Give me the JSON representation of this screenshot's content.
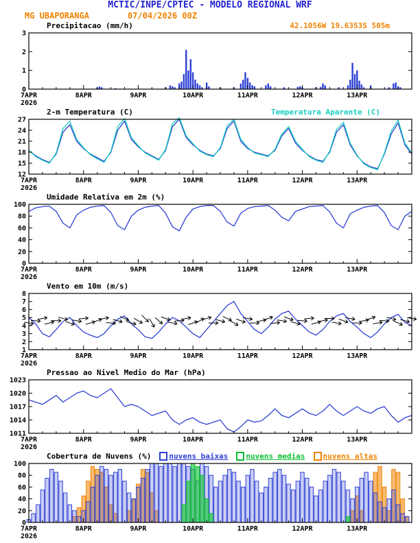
{
  "header": {
    "line1": "MCTIC/INPE/CPTEC - MODELO REGIONAL WRF",
    "station": "MG UBAPORANGA",
    "run": "07/04/2026 00Z",
    "location": "42.1056W 19.6353S 505m"
  },
  "colors": {
    "header_blue": "#2323cf",
    "orange": "#ef8300",
    "line_blue": "#2d3fd4",
    "cyan": "#17cfc0",
    "green": "#0abf30",
    "black": "#000000"
  },
  "x_axis": {
    "hours": 168,
    "day_labels": [
      "7APR",
      "8APR",
      "9APR",
      "10APR",
      "11APR",
      "12APR",
      "13APR"
    ],
    "year": "2026"
  },
  "chart_data": [
    {
      "id": "precipitation",
      "type": "bar",
      "title": "Precipitacao (mm/h)",
      "ylim": [
        0,
        3
      ],
      "yticks": [
        0,
        1,
        2,
        3
      ],
      "height": 82,
      "series": [
        {
          "name": "precipitacao",
          "color": "#2d3fd4",
          "type": "bar",
          "solid": true,
          "bar_width": 2.4,
          "step_hours": 1,
          "values": [
            0,
            0,
            0,
            0,
            0,
            0,
            0,
            0,
            0,
            0,
            0,
            0,
            0,
            0,
            0,
            0,
            0,
            0,
            0,
            0,
            0,
            0,
            0,
            0,
            0,
            0,
            0,
            0,
            0,
            0,
            0.1,
            0.15,
            0.1,
            0,
            0,
            0,
            0,
            0,
            0.05,
            0,
            0,
            0,
            0,
            0,
            0,
            0,
            0,
            0,
            0,
            0,
            0,
            0,
            0,
            0,
            0,
            0,
            0,
            0,
            0,
            0,
            0.1,
            0,
            0.2,
            0.15,
            0.1,
            0,
            0.3,
            0.4,
            0.8,
            2.1,
            1.0,
            1.6,
            0.9,
            0.5,
            0.3,
            0.2,
            0.1,
            0,
            0.35,
            0.15,
            0,
            0,
            0,
            0,
            0.1,
            0,
            0,
            0,
            0,
            0,
            0.1,
            0,
            0,
            0.3,
            0.5,
            0.9,
            0.6,
            0.35,
            0.2,
            0.15,
            0,
            0,
            0,
            0,
            0.2,
            0.3,
            0.15,
            0,
            0,
            0,
            0,
            0,
            0.1,
            0,
            0,
            0,
            0,
            0,
            0.12,
            0.15,
            0.1,
            0,
            0,
            0,
            0,
            0,
            0.1,
            0,
            0.12,
            0.3,
            0.2,
            0,
            0,
            0,
            0,
            0,
            0.1,
            0,
            0,
            0,
            0.2,
            0.5,
            1.4,
            0.8,
            1.0,
            0.45,
            0.25,
            0.1,
            0,
            0,
            0.2,
            0,
            0,
            0,
            0,
            0,
            0,
            0,
            0.1,
            0,
            0.3,
            0.35,
            0.15,
            0.1,
            0,
            0,
            0,
            0
          ]
        }
      ]
    },
    {
      "id": "temperature",
      "type": "line",
      "title": "2-m Temperatura (C)",
      "ylim": [
        12,
        27
      ],
      "yticks": [
        12,
        15,
        18,
        21,
        24,
        27
      ],
      "height": 80,
      "series": [
        {
          "name": "2-m Temperatura (C)",
          "color": "#2d3fd4",
          "type": "line",
          "step_hours": 3,
          "values": [
            18.5,
            17.0,
            16.0,
            15.2,
            17.5,
            23.5,
            25.5,
            21.0,
            19.0,
            17.5,
            16.5,
            15.5,
            18.0,
            24.0,
            26.5,
            21.5,
            19.5,
            18.0,
            17.0,
            16.0,
            18.5,
            25.0,
            27.0,
            22.0,
            20.0,
            18.5,
            17.5,
            17.0,
            19.0,
            24.5,
            26.5,
            21.0,
            19.0,
            18.0,
            17.5,
            17.0,
            18.5,
            22.5,
            24.5,
            20.5,
            18.5,
            17.0,
            16.0,
            15.5,
            18.0,
            23.5,
            25.5,
            20.0,
            17.0,
            15.0,
            14.0,
            13.5,
            17.5,
            23.0,
            26.0,
            20.0,
            17.5
          ]
        },
        {
          "name": "Temperatura Aparente (C)",
          "color": "#17cfc0",
          "type": "line",
          "step_hours": 3,
          "values": [
            18.5,
            16.8,
            15.8,
            15.0,
            17.8,
            24.5,
            26.5,
            21.5,
            19.2,
            17.3,
            16.2,
            15.2,
            18.3,
            25.0,
            27.2,
            22.0,
            19.8,
            17.8,
            16.8,
            15.8,
            18.8,
            25.8,
            27.5,
            22.5,
            20.3,
            18.3,
            17.3,
            16.8,
            19.3,
            25.2,
            27.0,
            21.5,
            19.3,
            17.8,
            17.3,
            16.8,
            18.8,
            23.0,
            25.0,
            21.0,
            18.8,
            16.8,
            15.8,
            15.2,
            18.3,
            24.2,
            26.2,
            20.5,
            17.2,
            14.8,
            13.8,
            13.2,
            17.8,
            23.8,
            26.8,
            20.5,
            17.8
          ]
        }
      ]
    },
    {
      "id": "humidity",
      "type": "line",
      "title": "Umidade Relativa em 2m (%)",
      "ylim": [
        0,
        100
      ],
      "yticks": [
        0,
        20,
        40,
        60,
        80,
        100
      ],
      "height": 86,
      "series": [
        {
          "name": "umidade relativa",
          "color": "#2d3fd4",
          "type": "line",
          "step_hours": 3,
          "values": [
            88,
            94,
            96,
            97,
            88,
            68,
            60,
            82,
            90,
            95,
            97,
            98,
            86,
            64,
            57,
            80,
            90,
            95,
            97,
            98,
            85,
            62,
            55,
            78,
            92,
            96,
            98,
            98,
            88,
            70,
            63,
            85,
            93,
            96,
            97,
            98,
            90,
            78,
            72,
            88,
            92,
            96,
            97,
            98,
            87,
            68,
            60,
            84,
            90,
            95,
            97,
            98,
            86,
            64,
            57,
            80,
            88
          ]
        }
      ]
    },
    {
      "id": "wind",
      "type": "line",
      "title": "Vento em 10m (m/s)",
      "ylim": [
        1,
        8
      ],
      "yticks": [
        1,
        2,
        3,
        4,
        5,
        6,
        7,
        8
      ],
      "height": 82,
      "series": [
        {
          "name": "velocidade do vento",
          "color": "#2d3fd4",
          "type": "line",
          "step_hours": 3,
          "values": [
            5.0,
            4.2,
            3.0,
            2.6,
            3.5,
            4.5,
            5.0,
            4.0,
            3.2,
            2.8,
            2.5,
            3.0,
            4.0,
            4.8,
            5.2,
            4.2,
            3.5,
            2.6,
            2.4,
            3.2,
            4.2,
            5.0,
            4.6,
            3.8,
            3.0,
            2.5,
            3.5,
            4.5,
            5.5,
            6.5,
            7.0,
            5.5,
            4.5,
            3.5,
            3.0,
            3.8,
            4.8,
            5.5,
            5.8,
            4.8,
            4.0,
            3.2,
            2.8,
            3.5,
            4.5,
            5.2,
            5.5,
            4.5,
            3.8,
            3.0,
            2.5,
            3.2,
            4.2,
            5.0,
            5.4,
            4.4,
            4.0
          ]
        }
      ],
      "barbs": {
        "step_hours": 3,
        "y_level": 4.6,
        "angles": [
          10,
          5,
          -10,
          -15,
          0,
          15,
          20,
          10,
          -5,
          -15,
          -20,
          -10,
          5,
          15,
          25,
          15,
          30,
          45,
          60,
          40,
          20,
          10,
          -5,
          -10,
          -20,
          -30,
          -15,
          0,
          15,
          25,
          30,
          20,
          10,
          0,
          -10,
          -20,
          -5,
          10,
          20,
          15,
          5,
          -5,
          -15,
          -10,
          0,
          10,
          20,
          10,
          0,
          -10,
          -20,
          -10,
          5,
          15,
          25,
          15,
          10
        ]
      }
    },
    {
      "id": "pressure",
      "type": "line",
      "title": "Pressao ao Nivel Medio do Mar (hPa)",
      "ylim": [
        1011,
        1023
      ],
      "yticks": [
        1011,
        1014,
        1017,
        1020,
        1023
      ],
      "height": 78,
      "series": [
        {
          "name": "pressao ao nivel medio do mar",
          "color": "#2d3fd4",
          "type": "line",
          "step_hours": 3,
          "values": [
            1018.5,
            1018.0,
            1017.5,
            1018.5,
            1019.5,
            1018.0,
            1019.0,
            1020.0,
            1020.5,
            1019.5,
            1019.0,
            1020.0,
            1021.0,
            1019.0,
            1017.0,
            1017.5,
            1017.0,
            1016.0,
            1015.0,
            1015.5,
            1016.0,
            1014.0,
            1013.0,
            1014.0,
            1014.5,
            1013.5,
            1013.0,
            1013.5,
            1014.0,
            1012.0,
            1011.3,
            1012.5,
            1014.0,
            1013.5,
            1013.8,
            1015.0,
            1016.5,
            1015.0,
            1014.5,
            1015.5,
            1016.5,
            1015.5,
            1015.0,
            1016.0,
            1017.5,
            1016.0,
            1015.0,
            1016.0,
            1017.0,
            1016.0,
            1015.5,
            1016.5,
            1017.0,
            1015.0,
            1013.5,
            1014.5,
            1015.0
          ]
        }
      ]
    },
    {
      "id": "clouds",
      "type": "bar",
      "title": "Cobertura de Nuvens (%)",
      "ylim": [
        0,
        100
      ],
      "yticks": [
        0,
        20,
        40,
        60,
        80,
        100
      ],
      "height": 86,
      "draw_order": [
        2,
        0,
        1
      ],
      "series": [
        {
          "name": "nuvens baixas",
          "label": "nuvens baixas",
          "color": "#2d3fd4",
          "type": "bar",
          "fill_opacity": 0.25,
          "step_hours": 2,
          "values": [
            5,
            15,
            30,
            55,
            75,
            90,
            85,
            70,
            50,
            30,
            20,
            10,
            20,
            35,
            60,
            80,
            95,
            90,
            80,
            85,
            90,
            70,
            50,
            40,
            60,
            75,
            90,
            100,
            100,
            95,
            100,
            100,
            95,
            100,
            100,
            95,
            90,
            70,
            100,
            95,
            80,
            60,
            70,
            80,
            90,
            85,
            70,
            60,
            80,
            90,
            70,
            50,
            60,
            75,
            85,
            90,
            80,
            65,
            55,
            70,
            85,
            75,
            60,
            45,
            55,
            70,
            80,
            90,
            85,
            70,
            55,
            40,
            60,
            75,
            85,
            70,
            50,
            35,
            25,
            40,
            55,
            30,
            15,
            10
          ]
        },
        {
          "name": "nuvens medias",
          "label": "nuvens medias",
          "color": "#0abf30",
          "type": "bar",
          "fill_opacity": 0.6,
          "step_hours": 2,
          "values": [
            0,
            0,
            0,
            0,
            0,
            0,
            0,
            0,
            0,
            0,
            0,
            0,
            0,
            0,
            0,
            0,
            0,
            0,
            0,
            0,
            0,
            0,
            0,
            0,
            0,
            0,
            0,
            0,
            0,
            0,
            0,
            0,
            0,
            0,
            30,
            70,
            100,
            95,
            80,
            40,
            15,
            0,
            0,
            0,
            0,
            0,
            0,
            0,
            0,
            0,
            0,
            0,
            0,
            0,
            0,
            0,
            0,
            0,
            0,
            0,
            0,
            0,
            0,
            0,
            0,
            0,
            0,
            0,
            0,
            0,
            10,
            0,
            0,
            0,
            0,
            0,
            0,
            0,
            0,
            0,
            0,
            0,
            0,
            0
          ]
        },
        {
          "name": "nuvens altas",
          "label": "nuvens altas",
          "color": "#ef8300",
          "type": "bar",
          "fill_opacity": 0.55,
          "step_hours": 2,
          "values": [
            0,
            0,
            0,
            0,
            0,
            0,
            0,
            0,
            0,
            0,
            10,
            25,
            45,
            70,
            95,
            90,
            85,
            60,
            30,
            15,
            0,
            0,
            20,
            40,
            65,
            90,
            85,
            50,
            20,
            0,
            0,
            0,
            0,
            0,
            0,
            0,
            0,
            0,
            0,
            0,
            0,
            0,
            0,
            0,
            0,
            0,
            0,
            0,
            0,
            0,
            0,
            0,
            0,
            0,
            0,
            0,
            0,
            0,
            0,
            0,
            0,
            0,
            0,
            0,
            0,
            0,
            0,
            0,
            0,
            0,
            0,
            20,
            45,
            20,
            0,
            0,
            85,
            95,
            60,
            20,
            90,
            85,
            40,
            10
          ]
        }
      ]
    }
  ]
}
